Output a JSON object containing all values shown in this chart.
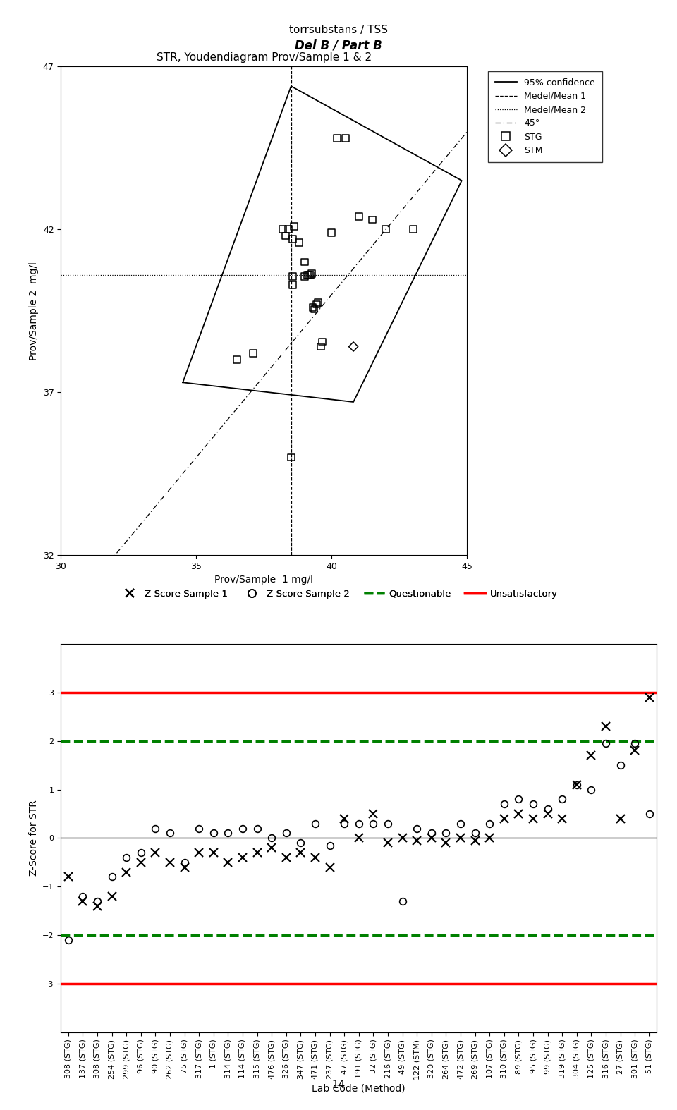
{
  "title_top1": "torrsubstans / TSS",
  "title_top2": "Del B / Part B",
  "scatter_title": "STR, Youdendiagram Prov/Sample 1 & 2",
  "xlabel_scatter": "Prov/Sample  1 mg/l",
  "ylabel_scatter": "Prov/Sample 2  mg/l",
  "xlim_scatter": [
    30,
    45
  ],
  "ylim_scatter": [
    32,
    47
  ],
  "xticks_scatter": [
    30,
    35,
    40,
    45
  ],
  "yticks_scatter": [
    32,
    37,
    42,
    47
  ],
  "mean1": 38.5,
  "mean2": 40.6,
  "stg_x": [
    37.1,
    36.5,
    38.2,
    38.4,
    38.3,
    38.55,
    38.55,
    38.8,
    39.0,
    39.0,
    39.1,
    39.15,
    39.2,
    39.25,
    39.3,
    39.35,
    39.45,
    39.5,
    39.6,
    39.65,
    40.0,
    40.2,
    40.5,
    41.0,
    41.5,
    42.0,
    43.0,
    38.5,
    38.6,
    38.55
  ],
  "stg_y": [
    38.2,
    38.0,
    42.0,
    42.0,
    41.8,
    40.55,
    40.3,
    41.6,
    41.0,
    40.55,
    40.6,
    40.6,
    40.6,
    40.65,
    39.6,
    39.55,
    39.7,
    39.75,
    38.4,
    38.55,
    41.9,
    44.8,
    44.8,
    42.4,
    42.3,
    42.0,
    42.0,
    35.0,
    42.1,
    41.7
  ],
  "stm_x": [
    40.8
  ],
  "stm_y": [
    38.4
  ],
  "confidence_polygon_x": [
    34.5,
    38.5,
    44.8,
    40.8,
    34.5
  ],
  "confidence_polygon_y": [
    37.3,
    46.4,
    43.5,
    36.7,
    37.3
  ],
  "ylabel_zscore": "Z-Score for STR",
  "xlabel_zscore": "Lab Code (Method)",
  "ylim_zscore": [
    -4,
    4
  ],
  "yticks_zscore": [
    -3,
    -2,
    -1,
    0,
    1,
    2,
    3
  ],
  "questionable": 2.0,
  "unsatisfactory": 3.0,
  "lab_codes": [
    "308 (STG)",
    "137 (STG)",
    "308 (STG)",
    "254 (STG)",
    "299 (STG)",
    "96 (STG)",
    "90 (STG)",
    "262 (STG)",
    "75 (STG)",
    "317 (STG)",
    "1 (STG)",
    "314 (STG)",
    "114 (STG)",
    "315 (STG)",
    "476 (STG)",
    "326 (STG)",
    "347 (STG)",
    "471 (STG)",
    "237 (STG)",
    "47 (STG)",
    "191 (STG)",
    "32 (STG)",
    "216 (STG)",
    "49 (STG)",
    "122 (STM)",
    "320 (STG)",
    "264 (STG)",
    "472 (STG)",
    "269 (STG)",
    "107 (STG)",
    "310 (STG)",
    "89 (STG)",
    "95 (STG)",
    "99 (STG)",
    "319 (STG)",
    "304 (STG)",
    "125 (STG)",
    "316 (STG)",
    "27 (STG)",
    "301 (STG)",
    "51 (STG)"
  ],
  "zscore_s1": [
    -0.8,
    -1.3,
    -1.4,
    -1.2,
    -0.7,
    -0.5,
    -0.3,
    -0.5,
    -0.6,
    -0.3,
    -0.3,
    -0.5,
    -0.4,
    -0.3,
    -0.2,
    -0.4,
    -0.3,
    -0.4,
    -0.6,
    0.4,
    0.0,
    0.5,
    -0.1,
    0.0,
    -0.05,
    0.0,
    -0.1,
    0.0,
    -0.05,
    0.0,
    0.4,
    0.5,
    0.4,
    0.5,
    0.4,
    1.1,
    1.7,
    2.3,
    0.4,
    1.8,
    2.9
  ],
  "zscore_s2": [
    -2.1,
    -1.2,
    -1.3,
    -0.8,
    -0.4,
    -0.3,
    0.2,
    0.1,
    -0.5,
    0.2,
    0.1,
    0.1,
    0.2,
    0.2,
    0.0,
    0.1,
    -0.1,
    0.3,
    -0.15,
    0.3,
    0.3,
    0.3,
    0.3,
    -1.3,
    0.2,
    0.1,
    0.1,
    0.3,
    0.1,
    0.3,
    0.7,
    0.8,
    0.7,
    0.6,
    0.8,
    1.1,
    1.0,
    1.95,
    1.5,
    1.95,
    0.5
  ],
  "page_number": "14"
}
